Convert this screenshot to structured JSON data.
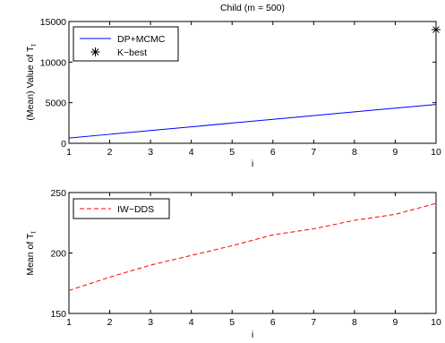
{
  "chart_data": [
    {
      "type": "line",
      "title": "Child (m = 500)",
      "xlabel": "i",
      "ylabel": "(Mean) Value of T",
      "ylabel_subscript": "t",
      "xlim": [
        1,
        10
      ],
      "ylim": [
        0,
        15000
      ],
      "x_ticks": [
        1,
        2,
        3,
        4,
        5,
        6,
        7,
        8,
        9,
        10
      ],
      "y_ticks": [
        0,
        5000,
        10000,
        15000
      ],
      "legend_position": "top-left",
      "series": [
        {
          "name": "DP+MCMC",
          "style": "solid",
          "color": "#0000ff",
          "x": [
            1,
            2,
            3,
            4,
            5,
            6,
            7,
            8,
            9,
            10
          ],
          "y": [
            650,
            1110,
            1570,
            2030,
            2490,
            2950,
            3410,
            3870,
            4330,
            4790
          ]
        },
        {
          "name": "K−best",
          "style": "marker-asterisk",
          "color": "#000000",
          "x": [
            10
          ],
          "y": [
            14000
          ]
        }
      ]
    },
    {
      "type": "line",
      "title": "",
      "xlabel": "i",
      "ylabel": "Mean of T",
      "ylabel_subscript": "t",
      "xlim": [
        1,
        10
      ],
      "ylim": [
        150,
        250
      ],
      "x_ticks": [
        1,
        2,
        3,
        4,
        5,
        6,
        7,
        8,
        9,
        10
      ],
      "y_ticks": [
        150,
        200,
        250
      ],
      "legend_position": "top-left",
      "series": [
        {
          "name": "IW−DDS",
          "style": "dashed",
          "color": "#ff0000",
          "x": [
            1,
            2,
            3,
            4,
            5,
            6,
            7,
            8,
            9,
            10
          ],
          "y": [
            169,
            180,
            190,
            198,
            206,
            215,
            220,
            227,
            232,
            241
          ]
        }
      ]
    }
  ]
}
